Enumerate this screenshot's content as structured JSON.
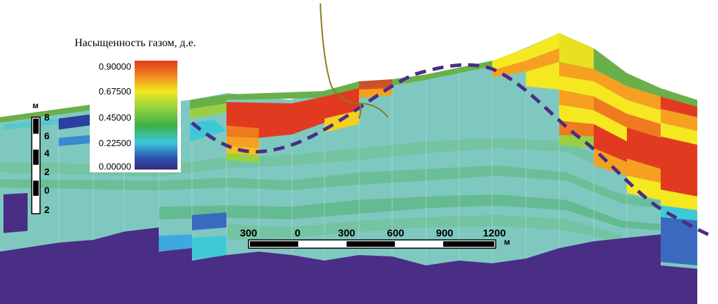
{
  "legend": {
    "title": "Насыщенность газом, д.е.",
    "ticks": [
      "0.90000",
      "0.67500",
      "0.45000",
      "0.22500",
      "0.00000"
    ],
    "gradient_colors": [
      "#e23a20",
      "#f5a020",
      "#f5f020",
      "#9ad040",
      "#3cb04a",
      "#3fc8d8",
      "#2a3fa0",
      "#3a2a7a"
    ]
  },
  "vertical_scale": {
    "unit": "м",
    "labels": [
      "8",
      "6",
      "4",
      "2",
      "0",
      "2"
    ]
  },
  "horizontal_scale": {
    "labels": [
      "300",
      "0",
      "300",
      "600",
      "900",
      "1200"
    ],
    "unit": "м"
  },
  "colors": {
    "basement": "#4a2d85",
    "background_fill": "#7ec8c0",
    "contact_line": "#4a2d85",
    "well": "#8a7a20"
  }
}
